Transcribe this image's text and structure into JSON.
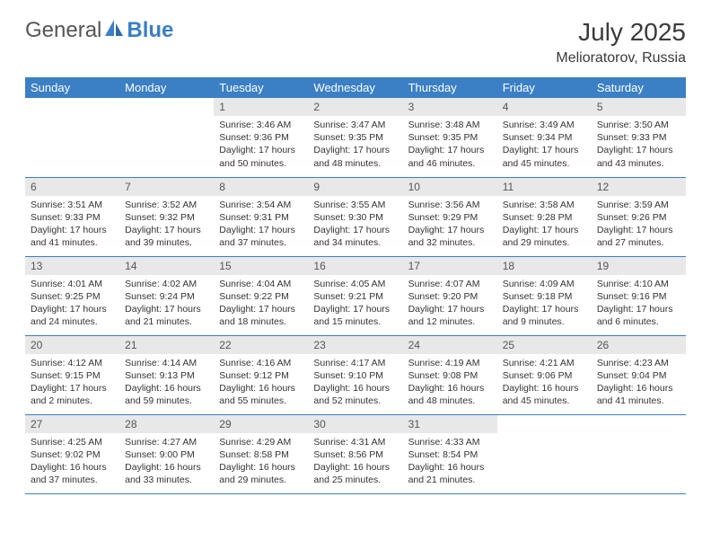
{
  "brand": {
    "part1": "General",
    "part2": "Blue"
  },
  "title": "July 2025",
  "location": "Melioratorov, Russia",
  "colors": {
    "header_bg": "#3b7fc4",
    "daynum_bg": "#e8e8e8",
    "border": "#3b7fc4",
    "text": "#333333"
  },
  "weekdays": [
    "Sunday",
    "Monday",
    "Tuesday",
    "Wednesday",
    "Thursday",
    "Friday",
    "Saturday"
  ],
  "weeks": [
    [
      null,
      null,
      {
        "n": "1",
        "sr": "Sunrise: 3:46 AM",
        "ss": "Sunset: 9:36 PM",
        "dl": "Daylight: 17 hours and 50 minutes."
      },
      {
        "n": "2",
        "sr": "Sunrise: 3:47 AM",
        "ss": "Sunset: 9:35 PM",
        "dl": "Daylight: 17 hours and 48 minutes."
      },
      {
        "n": "3",
        "sr": "Sunrise: 3:48 AM",
        "ss": "Sunset: 9:35 PM",
        "dl": "Daylight: 17 hours and 46 minutes."
      },
      {
        "n": "4",
        "sr": "Sunrise: 3:49 AM",
        "ss": "Sunset: 9:34 PM",
        "dl": "Daylight: 17 hours and 45 minutes."
      },
      {
        "n": "5",
        "sr": "Sunrise: 3:50 AM",
        "ss": "Sunset: 9:33 PM",
        "dl": "Daylight: 17 hours and 43 minutes."
      }
    ],
    [
      {
        "n": "6",
        "sr": "Sunrise: 3:51 AM",
        "ss": "Sunset: 9:33 PM",
        "dl": "Daylight: 17 hours and 41 minutes."
      },
      {
        "n": "7",
        "sr": "Sunrise: 3:52 AM",
        "ss": "Sunset: 9:32 PM",
        "dl": "Daylight: 17 hours and 39 minutes."
      },
      {
        "n": "8",
        "sr": "Sunrise: 3:54 AM",
        "ss": "Sunset: 9:31 PM",
        "dl": "Daylight: 17 hours and 37 minutes."
      },
      {
        "n": "9",
        "sr": "Sunrise: 3:55 AM",
        "ss": "Sunset: 9:30 PM",
        "dl": "Daylight: 17 hours and 34 minutes."
      },
      {
        "n": "10",
        "sr": "Sunrise: 3:56 AM",
        "ss": "Sunset: 9:29 PM",
        "dl": "Daylight: 17 hours and 32 minutes."
      },
      {
        "n": "11",
        "sr": "Sunrise: 3:58 AM",
        "ss": "Sunset: 9:28 PM",
        "dl": "Daylight: 17 hours and 29 minutes."
      },
      {
        "n": "12",
        "sr": "Sunrise: 3:59 AM",
        "ss": "Sunset: 9:26 PM",
        "dl": "Daylight: 17 hours and 27 minutes."
      }
    ],
    [
      {
        "n": "13",
        "sr": "Sunrise: 4:01 AM",
        "ss": "Sunset: 9:25 PM",
        "dl": "Daylight: 17 hours and 24 minutes."
      },
      {
        "n": "14",
        "sr": "Sunrise: 4:02 AM",
        "ss": "Sunset: 9:24 PM",
        "dl": "Daylight: 17 hours and 21 minutes."
      },
      {
        "n": "15",
        "sr": "Sunrise: 4:04 AM",
        "ss": "Sunset: 9:22 PM",
        "dl": "Daylight: 17 hours and 18 minutes."
      },
      {
        "n": "16",
        "sr": "Sunrise: 4:05 AM",
        "ss": "Sunset: 9:21 PM",
        "dl": "Daylight: 17 hours and 15 minutes."
      },
      {
        "n": "17",
        "sr": "Sunrise: 4:07 AM",
        "ss": "Sunset: 9:20 PM",
        "dl": "Daylight: 17 hours and 12 minutes."
      },
      {
        "n": "18",
        "sr": "Sunrise: 4:09 AM",
        "ss": "Sunset: 9:18 PM",
        "dl": "Daylight: 17 hours and 9 minutes."
      },
      {
        "n": "19",
        "sr": "Sunrise: 4:10 AM",
        "ss": "Sunset: 9:16 PM",
        "dl": "Daylight: 17 hours and 6 minutes."
      }
    ],
    [
      {
        "n": "20",
        "sr": "Sunrise: 4:12 AM",
        "ss": "Sunset: 9:15 PM",
        "dl": "Daylight: 17 hours and 2 minutes."
      },
      {
        "n": "21",
        "sr": "Sunrise: 4:14 AM",
        "ss": "Sunset: 9:13 PM",
        "dl": "Daylight: 16 hours and 59 minutes."
      },
      {
        "n": "22",
        "sr": "Sunrise: 4:16 AM",
        "ss": "Sunset: 9:12 PM",
        "dl": "Daylight: 16 hours and 55 minutes."
      },
      {
        "n": "23",
        "sr": "Sunrise: 4:17 AM",
        "ss": "Sunset: 9:10 PM",
        "dl": "Daylight: 16 hours and 52 minutes."
      },
      {
        "n": "24",
        "sr": "Sunrise: 4:19 AM",
        "ss": "Sunset: 9:08 PM",
        "dl": "Daylight: 16 hours and 48 minutes."
      },
      {
        "n": "25",
        "sr": "Sunrise: 4:21 AM",
        "ss": "Sunset: 9:06 PM",
        "dl": "Daylight: 16 hours and 45 minutes."
      },
      {
        "n": "26",
        "sr": "Sunrise: 4:23 AM",
        "ss": "Sunset: 9:04 PM",
        "dl": "Daylight: 16 hours and 41 minutes."
      }
    ],
    [
      {
        "n": "27",
        "sr": "Sunrise: 4:25 AM",
        "ss": "Sunset: 9:02 PM",
        "dl": "Daylight: 16 hours and 37 minutes."
      },
      {
        "n": "28",
        "sr": "Sunrise: 4:27 AM",
        "ss": "Sunset: 9:00 PM",
        "dl": "Daylight: 16 hours and 33 minutes."
      },
      {
        "n": "29",
        "sr": "Sunrise: 4:29 AM",
        "ss": "Sunset: 8:58 PM",
        "dl": "Daylight: 16 hours and 29 minutes."
      },
      {
        "n": "30",
        "sr": "Sunrise: 4:31 AM",
        "ss": "Sunset: 8:56 PM",
        "dl": "Daylight: 16 hours and 25 minutes."
      },
      {
        "n": "31",
        "sr": "Sunrise: 4:33 AM",
        "ss": "Sunset: 8:54 PM",
        "dl": "Daylight: 16 hours and 21 minutes."
      },
      null,
      null
    ]
  ]
}
